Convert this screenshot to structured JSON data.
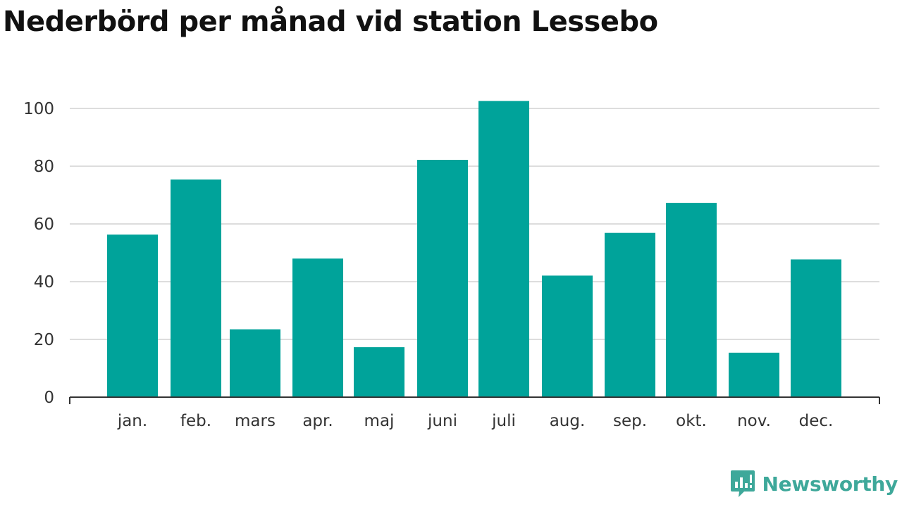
{
  "title": "Nederbörd per månad vid station Lessebo",
  "colors": {
    "bar": "#00a39a",
    "grid": "#dddddd",
    "axis": "#333333",
    "brand": "#3ea89a"
  },
  "brand": {
    "name": "Newsworthy",
    "icon": "bar-chart-speech-bubble-icon"
  },
  "chart_data": {
    "type": "bar",
    "title": "Nederbörd per månad vid station Lessebo",
    "xlabel": "",
    "ylabel": "",
    "categories": [
      "jan.",
      "feb.",
      "mars",
      "apr.",
      "maj",
      "juni",
      "juli",
      "aug.",
      "sep.",
      "okt.",
      "nov.",
      "dec."
    ],
    "values": [
      56.3,
      75.4,
      23.5,
      48.0,
      17.3,
      82.2,
      102.6,
      42.1,
      56.9,
      67.3,
      15.4,
      47.7
    ],
    "ylim": [
      0,
      110
    ],
    "yticks": [
      0,
      20,
      40,
      60,
      80,
      100
    ],
    "grid": true,
    "legend": "none"
  }
}
